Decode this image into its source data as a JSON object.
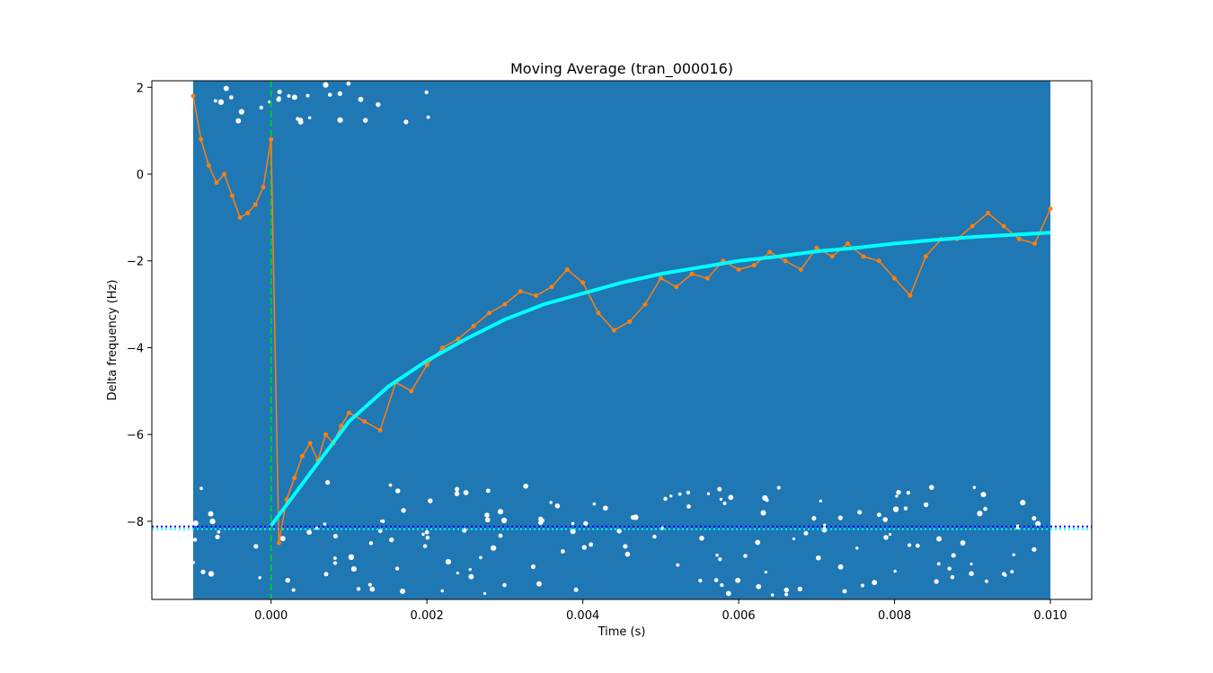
{
  "chart_data": {
    "type": "scatter",
    "title": "Moving Average (tran_000016)",
    "xlabel": "Time (s)",
    "ylabel": "Delta frequency (Hz)",
    "xlim": [
      -0.00153,
      0.01053
    ],
    "ylim": [
      -9.8,
      2.15
    ],
    "xticks": [
      0.0,
      0.002,
      0.004,
      0.006,
      0.008,
      0.01
    ],
    "xtick_labels": [
      "0.000",
      "0.002",
      "0.004",
      "0.006",
      "0.008",
      "0.010"
    ],
    "yticks": [
      -8,
      -6,
      -4,
      -2,
      0,
      2
    ],
    "ytick_labels": [
      "−8",
      "−6",
      "−4",
      "−2",
      "0",
      "2"
    ],
    "grid": false,
    "legend": "none",
    "colors": {
      "raw_scatter": "#1f77b4",
      "moving_average": "#ff7f0e",
      "fit": "#00ffff",
      "t0_marker": "#00cc33",
      "baseline_dotted_blue": "#0000ff",
      "baseline_dotted_cyan": "#00ffff"
    },
    "series": [
      {
        "role": "raw_scatter",
        "x_range": [
          -0.001,
          0.01
        ],
        "y_range": [
          -9.8,
          2.15
        ]
      },
      {
        "role": "moving_average",
        "x": [
          -0.001,
          -0.0009,
          -0.0008,
          -0.0007,
          -0.0006,
          -0.0005,
          -0.0004,
          -0.0003,
          -0.0002,
          -0.0001,
          0.0,
          0.0001,
          0.0002,
          0.0003,
          0.0004,
          0.0005,
          0.0006,
          0.0007,
          0.0008,
          0.0009,
          0.001,
          0.0012,
          0.0014,
          0.0016,
          0.0018,
          0.002,
          0.0022,
          0.0024,
          0.0026,
          0.0028,
          0.003,
          0.0032,
          0.0034,
          0.0036,
          0.0038,
          0.004,
          0.0042,
          0.0044,
          0.0046,
          0.0048,
          0.005,
          0.0052,
          0.0054,
          0.0056,
          0.0058,
          0.006,
          0.0062,
          0.0064,
          0.0066,
          0.0068,
          0.007,
          0.0072,
          0.0074,
          0.0076,
          0.0078,
          0.008,
          0.0082,
          0.0084,
          0.0086,
          0.0088,
          0.009,
          0.0092,
          0.0094,
          0.0096,
          0.0098,
          0.01
        ],
        "y": [
          1.8,
          0.8,
          0.2,
          -0.2,
          0.0,
          -0.5,
          -1.0,
          -0.9,
          -0.7,
          -0.3,
          0.8,
          -8.5,
          -7.5,
          -7.0,
          -6.5,
          -6.2,
          -6.6,
          -6.0,
          -6.2,
          -5.8,
          -5.5,
          -5.7,
          -5.9,
          -4.8,
          -5.0,
          -4.4,
          -4.0,
          -3.8,
          -3.5,
          -3.2,
          -3.0,
          -2.7,
          -2.8,
          -2.6,
          -2.2,
          -2.5,
          -3.2,
          -3.6,
          -3.4,
          -3.0,
          -2.4,
          -2.6,
          -2.3,
          -2.4,
          -2.0,
          -2.2,
          -2.1,
          -1.8,
          -2.0,
          -2.2,
          -1.7,
          -1.9,
          -1.6,
          -1.9,
          -2.0,
          -2.4,
          -2.8,
          -1.9,
          -1.5,
          -1.5,
          -1.2,
          -0.9,
          -1.2,
          -1.5,
          -1.6,
          -0.8
        ]
      },
      {
        "role": "fit",
        "x": [
          0.0,
          0.0005,
          0.001,
          0.0015,
          0.002,
          0.0025,
          0.003,
          0.0035,
          0.004,
          0.0045,
          0.005,
          0.0055,
          0.006,
          0.0065,
          0.007,
          0.0075,
          0.008,
          0.0085,
          0.009,
          0.0095,
          0.01
        ],
        "y": [
          -8.1,
          -6.9,
          -5.7,
          -4.9,
          -4.3,
          -3.8,
          -3.35,
          -3.0,
          -2.75,
          -2.5,
          -2.3,
          -2.15,
          -2.0,
          -1.9,
          -1.78,
          -1.7,
          -1.6,
          -1.52,
          -1.45,
          -1.4,
          -1.35
        ]
      }
    ],
    "reference_lines": {
      "vertical_x": 0.0,
      "horizontal_blue_y": -8.12,
      "horizontal_cyan_y": -8.18
    }
  }
}
